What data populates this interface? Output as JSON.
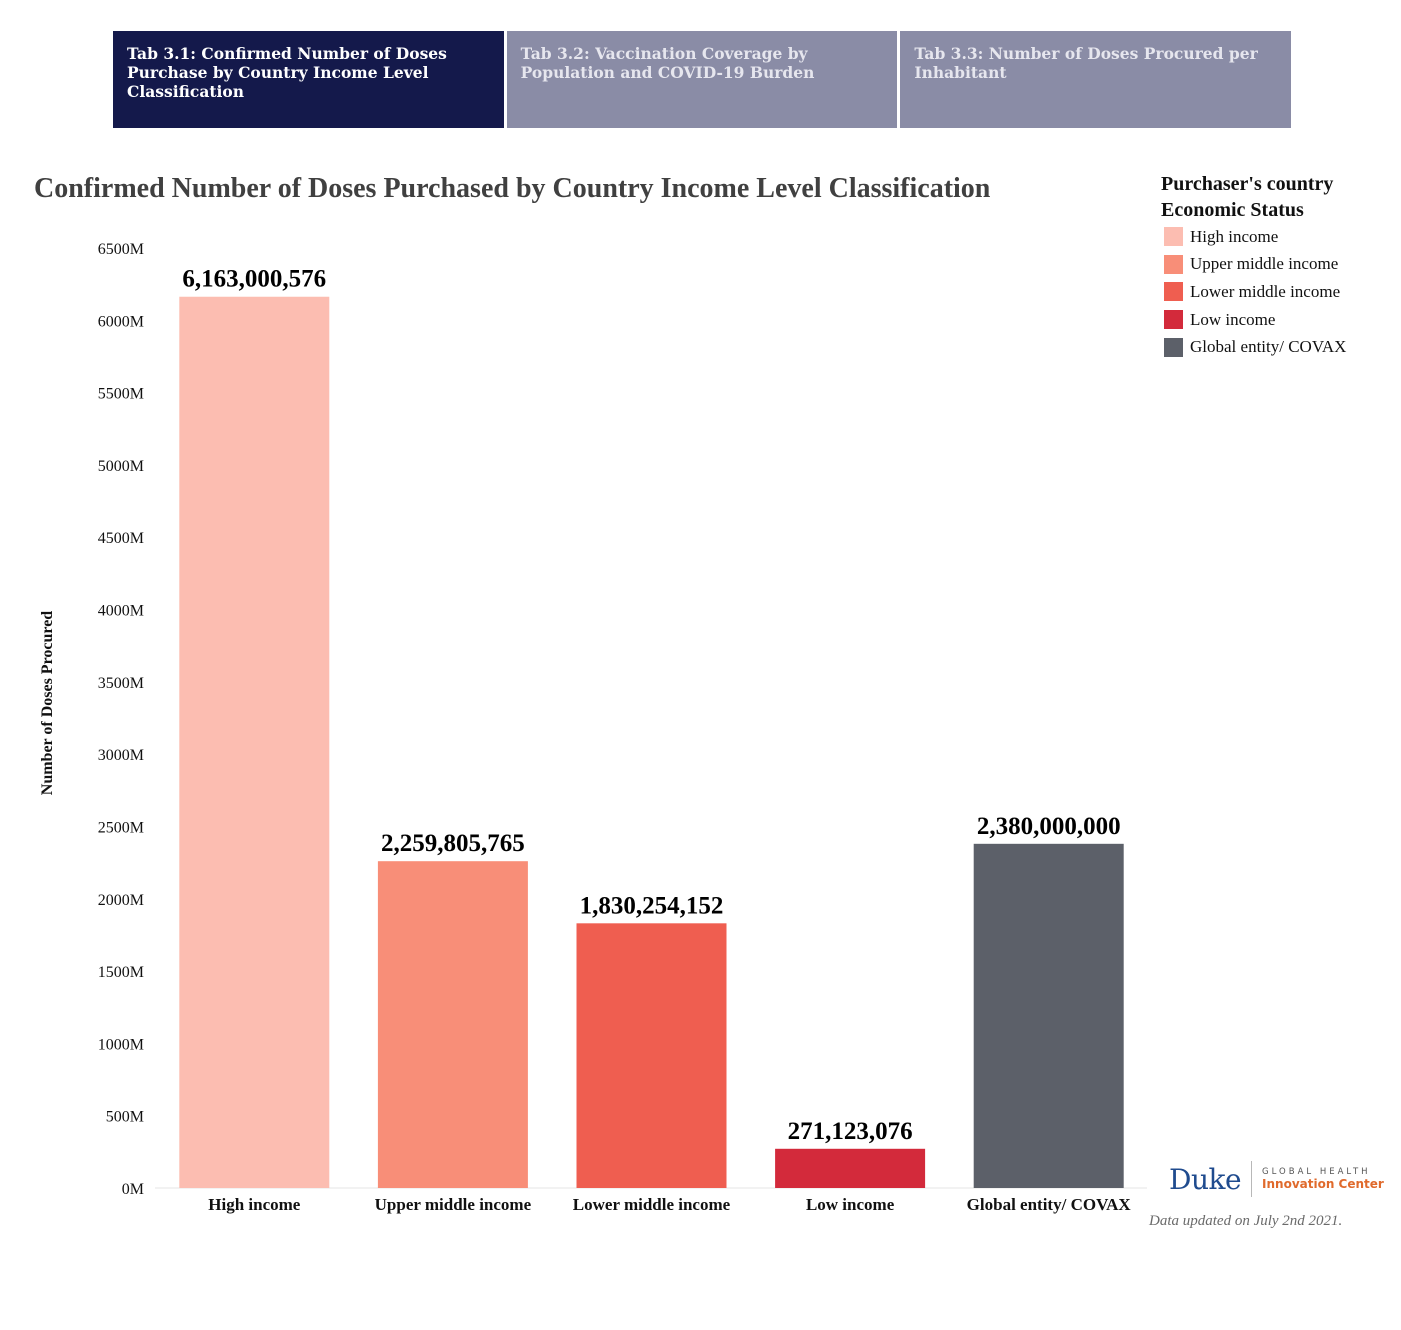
{
  "tabs": [
    {
      "label": "Tab 3.1: Confirmed Number of Doses Purchase by Country Income Level Classification",
      "active": true
    },
    {
      "label": "Tab 3.2: Vaccination Coverage by Population and COVID-19 Burden",
      "active": false
    },
    {
      "label": " Tab 3.3: Number of Doses Procured per Inhabitant",
      "active": false
    }
  ],
  "chart_data": {
    "type": "bar",
    "title": "Confirmed Number of Doses Purchased by Country Income Level Classification",
    "xlabel": "",
    "ylabel": "Number of Doses Procured",
    "categories": [
      "High income",
      "Upper middle income",
      "Lower middle income",
      "Low income",
      "Global entity/ COVAX"
    ],
    "values": [
      6163000576,
      2259805765,
      1830254152,
      271123076,
      2380000000
    ],
    "value_labels": [
      "6,163,000,576",
      "2,259,805,765",
      "1,830,254,152",
      "271,123,076",
      "2,380,000,000"
    ],
    "colors": [
      "#fcbdb1",
      "#f88e78",
      "#ef5e50",
      "#d32a3b",
      "#5c6069"
    ],
    "ylim": [
      0,
      6500000000
    ],
    "yticks": [
      0,
      500000000,
      1000000000,
      1500000000,
      2000000000,
      2500000000,
      3000000000,
      3500000000,
      4000000000,
      4500000000,
      5000000000,
      5500000000,
      6000000000,
      6500000000
    ],
    "ytick_labels": [
      "0M",
      "500M",
      "1000M",
      "1500M",
      "2000M",
      "2500M",
      "3000M",
      "3500M",
      "4000M",
      "4500M",
      "5000M",
      "5500M",
      "6000M",
      "6500M"
    ],
    "grid": false,
    "legend": {
      "title": "Purchaser's country Economic  Status",
      "placement": "top-right",
      "entries": [
        "High income",
        "Upper middle income",
        "Lower middle income",
        "Low income",
        "Global entity/ COVAX"
      ]
    }
  },
  "logo": {
    "name": "Duke",
    "line1": "GLOBAL HEALTH",
    "line2": "Innovation Center"
  },
  "note": "Data updated on July 2nd 2021."
}
